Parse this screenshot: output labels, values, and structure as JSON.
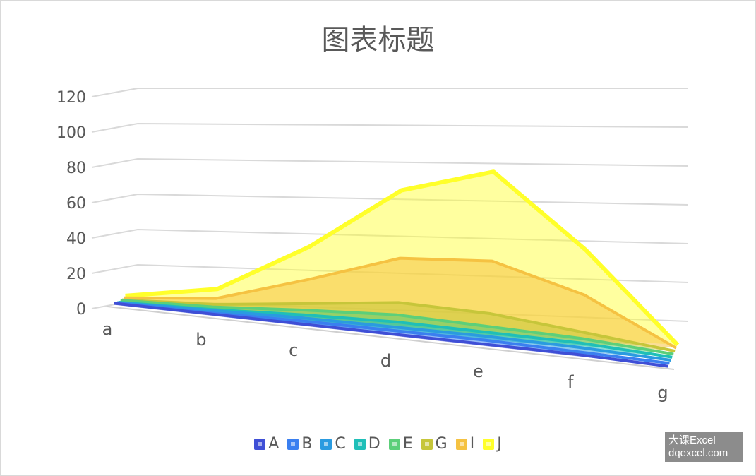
{
  "chart_data": {
    "type": "area",
    "title": "图表标题",
    "categories": [
      "a",
      "b",
      "c",
      "d",
      "e",
      "f",
      "g"
    ],
    "yticks": [
      "0",
      "20",
      "40",
      "60",
      "80",
      "100",
      "120"
    ],
    "ylim": [
      0,
      120
    ],
    "grid": true,
    "legend_position": "bottom",
    "series": [
      {
        "name": "A",
        "color": "#3f4fd6",
        "values": [
          1,
          1,
          1,
          1,
          1,
          1,
          0
        ]
      },
      {
        "name": "B",
        "color": "#3a7ff0",
        "values": [
          1,
          1,
          2,
          2,
          2,
          1,
          0
        ]
      },
      {
        "name": "C",
        "color": "#2a9be0",
        "values": [
          1,
          2,
          3,
          3,
          3,
          2,
          0
        ]
      },
      {
        "name": "D",
        "color": "#1fbfb8",
        "values": [
          1,
          2,
          4,
          5,
          4,
          3,
          0
        ]
      },
      {
        "name": "E",
        "color": "#5ccf7a",
        "values": [
          2,
          3,
          6,
          8,
          6,
          4,
          0
        ]
      },
      {
        "name": "G",
        "color": "#c6c63a",
        "values": [
          2,
          4,
          9,
          14,
          12,
          6,
          0
        ]
      },
      {
        "name": "I",
        "color": "#f5c242",
        "values": [
          3,
          7,
          22,
          38,
          40,
          25,
          0
        ]
      },
      {
        "name": "J",
        "color": "#ffff2a",
        "values": [
          4,
          12,
          40,
          75,
          88,
          48,
          0
        ]
      }
    ]
  },
  "watermark": {
    "line1": "大课Excel",
    "line2": "dqexcel.com"
  }
}
